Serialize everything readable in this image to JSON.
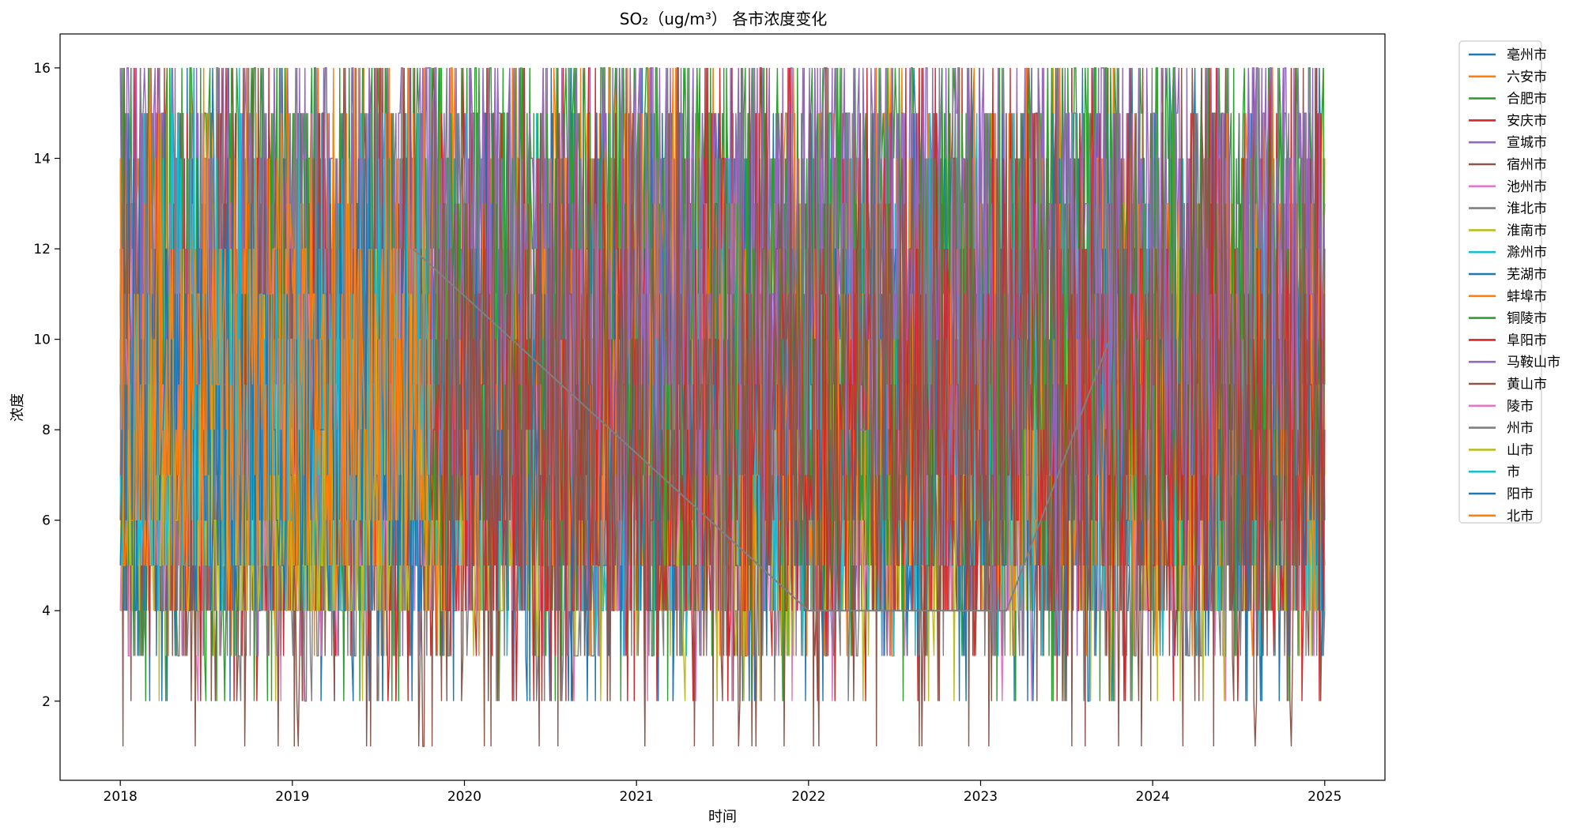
{
  "chart_data": {
    "type": "line",
    "title": "SO₂（ug/m³） 各市浓度变化",
    "xlabel": "时间",
    "ylabel": "浓度",
    "x_tick_labels": [
      "2018",
      "2019",
      "2020",
      "2021",
      "2022",
      "2023",
      "2024",
      "2025"
    ],
    "x_tick_values": [
      2018,
      2019,
      2020,
      2021,
      2022,
      2023,
      2024,
      2025
    ],
    "y_tick_labels": [
      "2",
      "4",
      "6",
      "8",
      "10",
      "12",
      "14",
      "16"
    ],
    "y_tick_values": [
      2,
      4,
      6,
      8,
      10,
      12,
      14,
      16
    ],
    "xlim": [
      2017.65,
      2025.35
    ],
    "ylim": [
      0.25,
      16.75
    ],
    "x_range": [
      2018.0,
      2025.0
    ],
    "grid": false,
    "legend_position": "outside-right",
    "series": [
      {
        "name": "亳州市",
        "color": "#1f77b4",
        "baseline": 7,
        "low": 2,
        "high": 16,
        "band": [
          4,
          12
        ]
      },
      {
        "name": "六安市",
        "color": "#ff7f0e",
        "baseline": 9,
        "low": 3,
        "high": 16,
        "band": [
          5,
          14
        ]
      },
      {
        "name": "合肥市",
        "color": "#2ca02c",
        "baseline": 10,
        "low": 2,
        "high": 16,
        "band": [
          4,
          16
        ]
      },
      {
        "name": "安庆市",
        "color": "#d62728",
        "baseline": 6,
        "low": 2,
        "high": 16,
        "band": [
          4,
          11
        ]
      },
      {
        "name": "宣城市",
        "color": "#9467bd",
        "baseline": 11,
        "low": 3,
        "high": 16,
        "band": [
          6,
          16
        ]
      },
      {
        "name": "宿州市",
        "color": "#8c564b",
        "baseline": 8,
        "low": 1,
        "high": 16,
        "band": [
          4,
          13
        ]
      },
      {
        "name": "池州市",
        "color": "#e377c2",
        "baseline": 6,
        "low": 2,
        "high": 13,
        "band": [
          4,
          9
        ]
      },
      {
        "name": "淮北市",
        "color": "#7f7f7f",
        "baseline": 6,
        "low": 2,
        "high": 16,
        "band": [
          3,
          10
        ]
      },
      {
        "name": "淮南市",
        "color": "#bcbd22",
        "baseline": 6,
        "low": 2,
        "high": 13,
        "band": [
          4,
          9
        ]
      },
      {
        "name": "滁州市",
        "color": "#17becf",
        "baseline": 7,
        "low": 3,
        "high": 15,
        "band": [
          4,
          11
        ]
      },
      {
        "name": "芜湖市",
        "color": "#1f77b4",
        "baseline": 8,
        "low": 2,
        "high": 15,
        "band": [
          5,
          12
        ]
      },
      {
        "name": "蚌埠市",
        "color": "#ff7f0e",
        "baseline": 8,
        "low": 3,
        "high": 16,
        "band": [
          5,
          13
        ]
      },
      {
        "name": "铜陵市",
        "color": "#2ca02c",
        "baseline": 10,
        "low": 2,
        "high": 16,
        "band": [
          5,
          16
        ]
      },
      {
        "name": "阜阳市",
        "color": "#d62728",
        "baseline": 7,
        "low": 2,
        "high": 16,
        "band": [
          4,
          12
        ]
      },
      {
        "name": "马鞍山市",
        "color": "#9467bd",
        "baseline": 11,
        "low": 3,
        "high": 16,
        "band": [
          7,
          16
        ]
      },
      {
        "name": "黄山市",
        "color": "#8c564b",
        "baseline": 7,
        "low": 1,
        "high": 16,
        "band": [
          4,
          13
        ]
      },
      {
        "name": "陵市",
        "color": "#e377c2",
        "baseline": 7,
        "low": 4,
        "high": 12,
        "band": [
          5,
          10
        ],
        "x_range": [
          2018.0,
          2019.8
        ]
      },
      {
        "name": "州市",
        "color": "#7f7f7f",
        "baseline": 6,
        "low": 4,
        "high": 16,
        "band": [
          4,
          11
        ],
        "x_range": [
          2018.0,
          2019.8
        ]
      },
      {
        "name": "山市",
        "color": "#bcbd22",
        "baseline": 6,
        "low": 4,
        "high": 12,
        "band": [
          4,
          9
        ],
        "x_range": [
          2018.0,
          2019.8
        ]
      },
      {
        "name": "市",
        "color": "#17becf",
        "baseline": 8,
        "low": 4,
        "high": 16,
        "band": [
          5,
          12
        ],
        "x_range": [
          2018.0,
          2019.8
        ]
      },
      {
        "name": "阳市",
        "color": "#1f77b4",
        "baseline": 7,
        "low": 4,
        "high": 14,
        "band": [
          4,
          11
        ],
        "x_range": [
          2018.0,
          2019.8
        ]
      },
      {
        "name": "北市",
        "color": "#ff7f0e",
        "baseline": 8,
        "low": 4,
        "high": 16,
        "band": [
          5,
          12
        ],
        "x_range": [
          2018.0,
          2019.8
        ]
      }
    ],
    "annotations": [
      {
        "series": "淮北市",
        "kind": "interpolated-segment",
        "points": [
          [
            2019.7,
            12.0
          ],
          [
            2022.0,
            4.0
          ],
          [
            2023.15,
            4.0
          ],
          [
            2023.75,
            10.0
          ]
        ]
      }
    ]
  }
}
